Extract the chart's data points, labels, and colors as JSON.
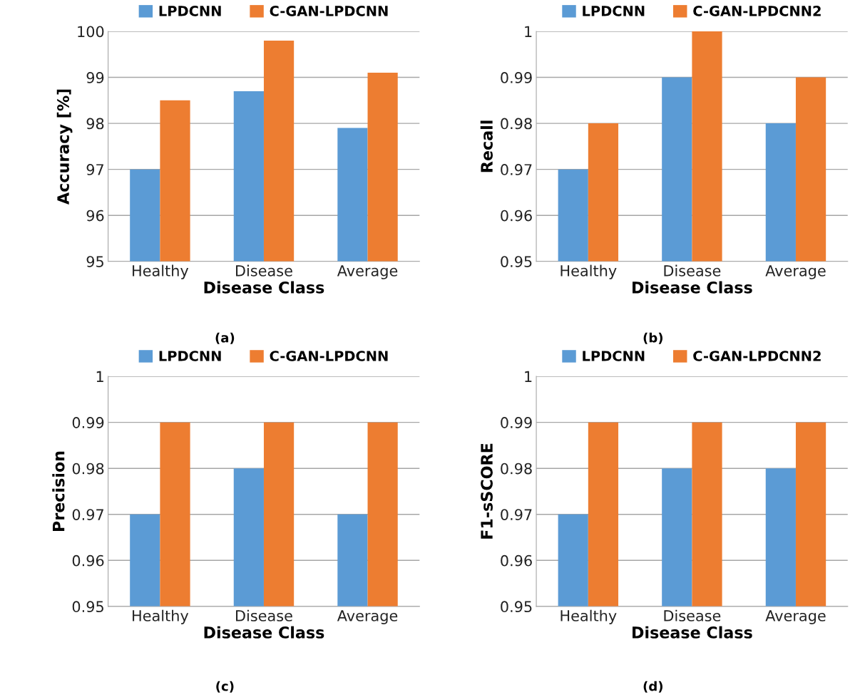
{
  "chart_data": [
    {
      "type": "bar",
      "xlabel": "Disease Class",
      "ylabel": "Accuracy [%]",
      "categories": [
        "Healthy",
        "Disease",
        "Average"
      ],
      "series": [
        {
          "name": "LPDCNN",
          "color": "#5b9bd5",
          "values": [
            97.0,
            98.7,
            97.9
          ]
        },
        {
          "name": "C-GAN-LPDCNN",
          "color": "#ed7d31",
          "values": [
            98.5,
            99.8,
            99.1
          ]
        }
      ],
      "ylim": [
        95,
        100
      ],
      "yticks": [
        95,
        96,
        97,
        98,
        99,
        100
      ],
      "grid": "y",
      "legend": "top",
      "annotations": [
        "(a)"
      ]
    },
    {
      "type": "bar",
      "xlabel": "Disease Class",
      "ylabel": "Recall",
      "categories": [
        "Healthy",
        "Disease",
        "Average"
      ],
      "series": [
        {
          "name": "LPDCNN",
          "color": "#5b9bd5",
          "values": [
            0.97,
            0.99,
            0.98
          ]
        },
        {
          "name": "C-GAN-LPDCNN2",
          "color": "#ed7d31",
          "values": [
            0.98,
            1.0,
            0.99
          ]
        }
      ],
      "ylim": [
        0.95,
        1
      ],
      "yticks": [
        0.95,
        0.96,
        0.97,
        0.98,
        0.99,
        1
      ],
      "grid": "y",
      "legend": "top",
      "annotations": [
        "(b)"
      ]
    },
    {
      "type": "bar",
      "xlabel": "Disease Class",
      "ylabel": "Precision",
      "categories": [
        "Healthy",
        "Disease",
        "Average"
      ],
      "series": [
        {
          "name": "LPDCNN",
          "color": "#5b9bd5",
          "values": [
            0.97,
            0.98,
            0.97
          ]
        },
        {
          "name": "C-GAN-LPDCNN",
          "color": "#ed7d31",
          "values": [
            0.99,
            0.99,
            0.99
          ]
        }
      ],
      "ylim": [
        0.95,
        1
      ],
      "yticks": [
        0.95,
        0.96,
        0.97,
        0.98,
        0.99,
        1
      ],
      "grid": "y",
      "legend": "top",
      "annotations": [
        "(c)"
      ]
    },
    {
      "type": "bar",
      "xlabel": "Disease Class",
      "ylabel": "F1-sSCORE",
      "categories": [
        "Healthy",
        "Disease",
        "Average"
      ],
      "series": [
        {
          "name": "LPDCNN",
          "color": "#5b9bd5",
          "values": [
            0.97,
            0.98,
            0.98
          ]
        },
        {
          "name": "C-GAN-LPDCNN2",
          "color": "#ed7d31",
          "values": [
            0.99,
            0.99,
            0.99
          ]
        }
      ],
      "ylim": [
        0.95,
        1
      ],
      "yticks": [
        0.95,
        0.96,
        0.97,
        0.98,
        0.99,
        1
      ],
      "grid": "y",
      "legend": "top",
      "annotations": [
        "(d)"
      ]
    }
  ]
}
